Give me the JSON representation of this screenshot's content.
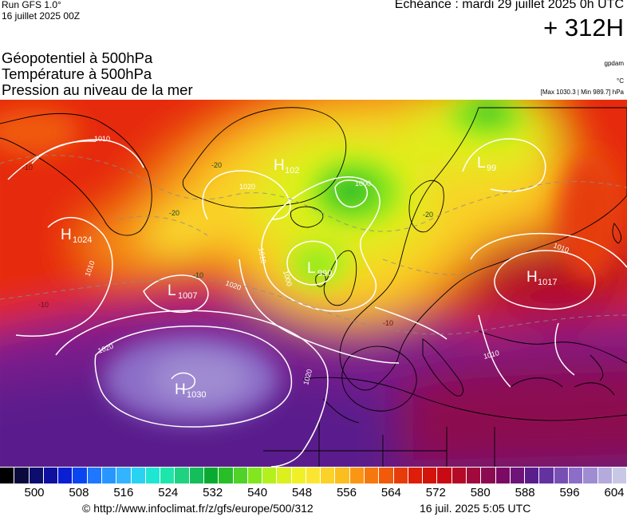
{
  "header": {
    "run_title": "Run GFS 1.0°",
    "run_date": "16 juillet 2025 00Z",
    "echeance": "Echéance : mardi 29 juillet 2025 0h UTC",
    "horizon": "+ 312H"
  },
  "fields": [
    {
      "label": "Géopotentiel à 500hPa",
      "unit": "gpdam"
    },
    {
      "label": "Température à 500hPa",
      "unit": "°C"
    },
    {
      "label": "Pression au niveau de la mer",
      "unit": "[Max 1030.3 | Min 989.7] hPa"
    }
  ],
  "pressure_centers": [
    {
      "type": "H",
      "value": "1024"
    },
    {
      "type": "L",
      "value": "1007"
    },
    {
      "type": "H",
      "value": "1030"
    },
    {
      "type": "L",
      "value": "990"
    },
    {
      "type": "H",
      "value": "102"
    },
    {
      "type": "H",
      "value": "1017"
    },
    {
      "type": "L",
      "value": "99"
    }
  ],
  "isobar_labels": [
    "1010",
    "1020",
    "1000",
    "1010",
    "1000",
    "1020",
    "1020",
    "1020",
    "1010",
    "1010",
    "1010"
  ],
  "isotherm_labels": [
    "-20",
    "-20",
    "-20",
    "-10",
    "-10",
    "-10",
    "-10"
  ],
  "colorbar": {
    "colors": [
      "#000000",
      "#0a0a3c",
      "#0d0d6e",
      "#0f0fa0",
      "#0a1ed2",
      "#0a46f0",
      "#1e78ff",
      "#2896ff",
      "#32b4ff",
      "#28d2f0",
      "#1ee6d2",
      "#1ee6aa",
      "#1ed282",
      "#14be5a",
      "#0aaa32",
      "#28be28",
      "#50d228",
      "#82e61e",
      "#b4f01e",
      "#dcf01e",
      "#f0f028",
      "#fae632",
      "#fad228",
      "#fabe1e",
      "#fa9614",
      "#f5780f",
      "#f05a0a",
      "#e63c0a",
      "#dc1e0a",
      "#d2140a",
      "#c80a14",
      "#b40a28",
      "#a00a3c",
      "#8c0a50",
      "#7a0a64",
      "#6e1478",
      "#5a1e8c",
      "#6432a0",
      "#7850b4",
      "#8c6ec8",
      "#a08cd2",
      "#b4aadc",
      "#c8c8e6"
    ],
    "ticks": [
      "500",
      "508",
      "516",
      "524",
      "532",
      "540",
      "548",
      "556",
      "564",
      "572",
      "580",
      "588",
      "596",
      "604"
    ]
  },
  "footer": {
    "credit": "© http://www.infoclimat.fr/z/gfs/europe/500/312",
    "generated": "16 juil. 2025  5:05 UTC"
  }
}
